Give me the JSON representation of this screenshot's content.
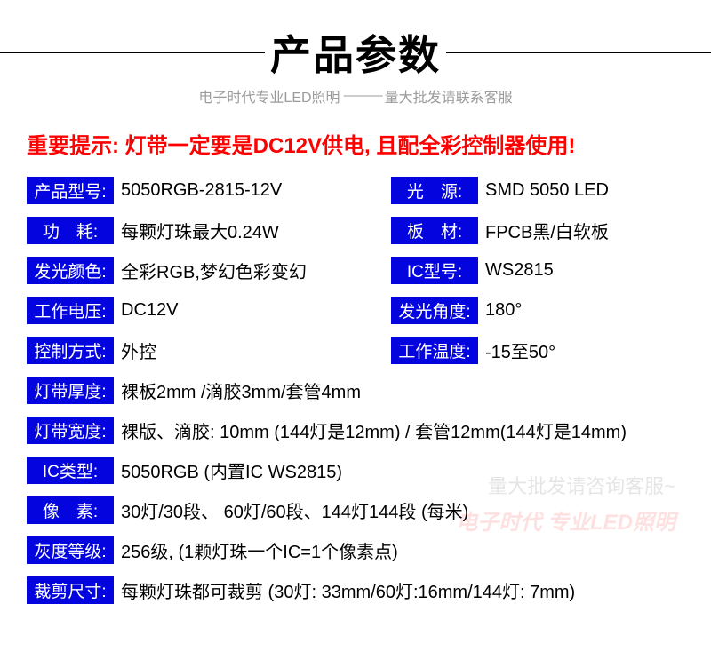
{
  "header": {
    "title": "产品参数",
    "subtitle_left": "电子时代专业LED照明",
    "subtitle_right": "量大批发请联系客服"
  },
  "warning": {
    "prefix": "重要提示:",
    "text": " 灯带一定要是DC12V供电, 且配全彩控制器使用!"
  },
  "specs": {
    "model": {
      "label": "产品型号:",
      "value": "5050RGB-2815-12V"
    },
    "light_src": {
      "label": "光　源:",
      "value": "SMD 5050 LED"
    },
    "power": {
      "label": "功　耗:",
      "value": "每颗灯珠最大0.24W"
    },
    "board": {
      "label": "板　材:",
      "value": "FPCB黑/白软板"
    },
    "color": {
      "label": "发光颜色:",
      "value": "全彩RGB,梦幻色彩变幻"
    },
    "ic_model": {
      "label": "IC型号:",
      "value": "WS2815"
    },
    "voltage": {
      "label": "工作电压:",
      "value": "DC12V"
    },
    "angle": {
      "label": "发光角度:",
      "value": "180°"
    },
    "control": {
      "label": "控制方式:",
      "value": "外控"
    },
    "temp": {
      "label": "工作温度:",
      "value": "-15至50°"
    },
    "thickness": {
      "label": "灯带厚度:",
      "value": "裸板2mm  /滴胶3mm/套管4mm"
    },
    "width": {
      "label": "灯带宽度:",
      "value": "裸版、滴胶: 10mm (144灯是12mm) / 套管12mm(144灯是14mm)"
    },
    "ic_type": {
      "label": "IC类型:",
      "value": "5050RGB (内置IC WS2815)"
    },
    "pixels": {
      "label": "像　素:",
      "value": "30灯/30段、 60灯/60段、144灯144段 (每米)"
    },
    "gray": {
      "label": "灰度等级:",
      "value": "256级, (1颗灯珠一个IC=1个像素点)"
    },
    "cut": {
      "label": "裁剪尺寸:",
      "value": "每颗灯珠都可裁剪 (30灯: 33mm/60灯:16mm/144灯: 7mm)"
    }
  },
  "watermark": {
    "line1": "量大批发请咨询客服~",
    "line2": "电子时代 专业LED照明"
  },
  "colors": {
    "label_bg": "#0404de",
    "warning": "#ff0000",
    "subtitle": "#9b9b9b"
  }
}
